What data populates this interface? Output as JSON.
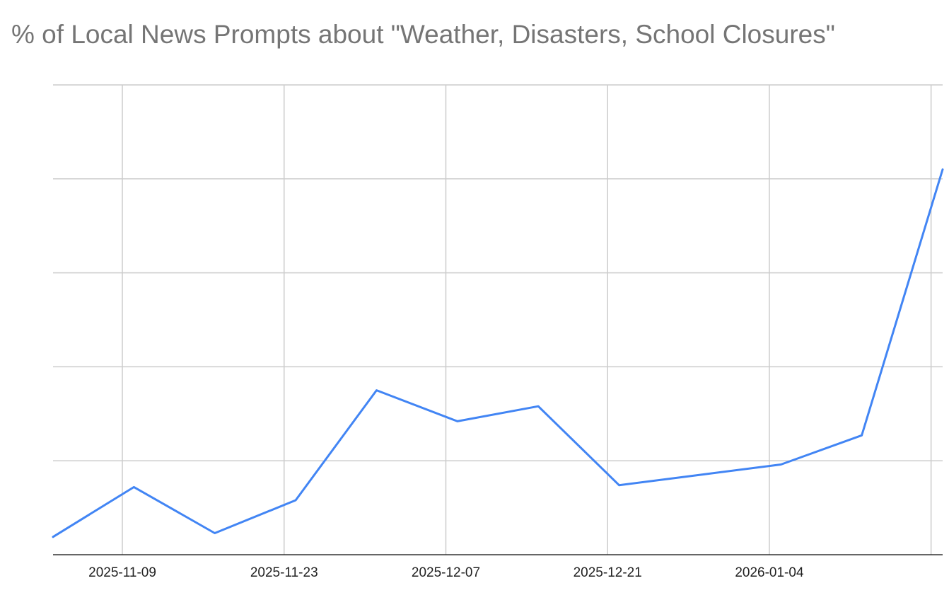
{
  "chart_data": {
    "type": "line",
    "title": "% of Local News Prompts about \"Weather, Disasters, School Closures\"",
    "xlabel": "",
    "ylabel": "",
    "x_tick_labels": [
      "2025-11-09",
      "2025-11-23",
      "2025-12-07",
      "2025-12-21",
      "2026-01-04"
    ],
    "x_ticks": [
      "2025-11-09",
      "2025-11-23",
      "2025-12-07",
      "2025-12-21",
      "2026-01-04",
      "2026-01-18"
    ],
    "xlim": [
      "2025-11-03",
      "2026-01-19"
    ],
    "ylim": [
      0,
      5
    ],
    "y_gridlines": [
      1,
      2,
      3,
      4,
      5
    ],
    "y_tick_labels_shown": false,
    "grid": true,
    "legend": "none",
    "series": [
      {
        "color": "#4285F4",
        "x": [
          "2025-11-03",
          "2025-11-10",
          "2025-11-17",
          "2025-11-24",
          "2025-12-01",
          "2025-12-08",
          "2025-12-15",
          "2025-12-22",
          "2025-12-29",
          "2026-01-05",
          "2026-01-12",
          "2026-01-19"
        ],
        "values": [
          0.19,
          0.72,
          0.23,
          0.58,
          1.75,
          1.42,
          1.58,
          0.74,
          0.85,
          0.96,
          1.27,
          4.1
        ]
      }
    ]
  }
}
